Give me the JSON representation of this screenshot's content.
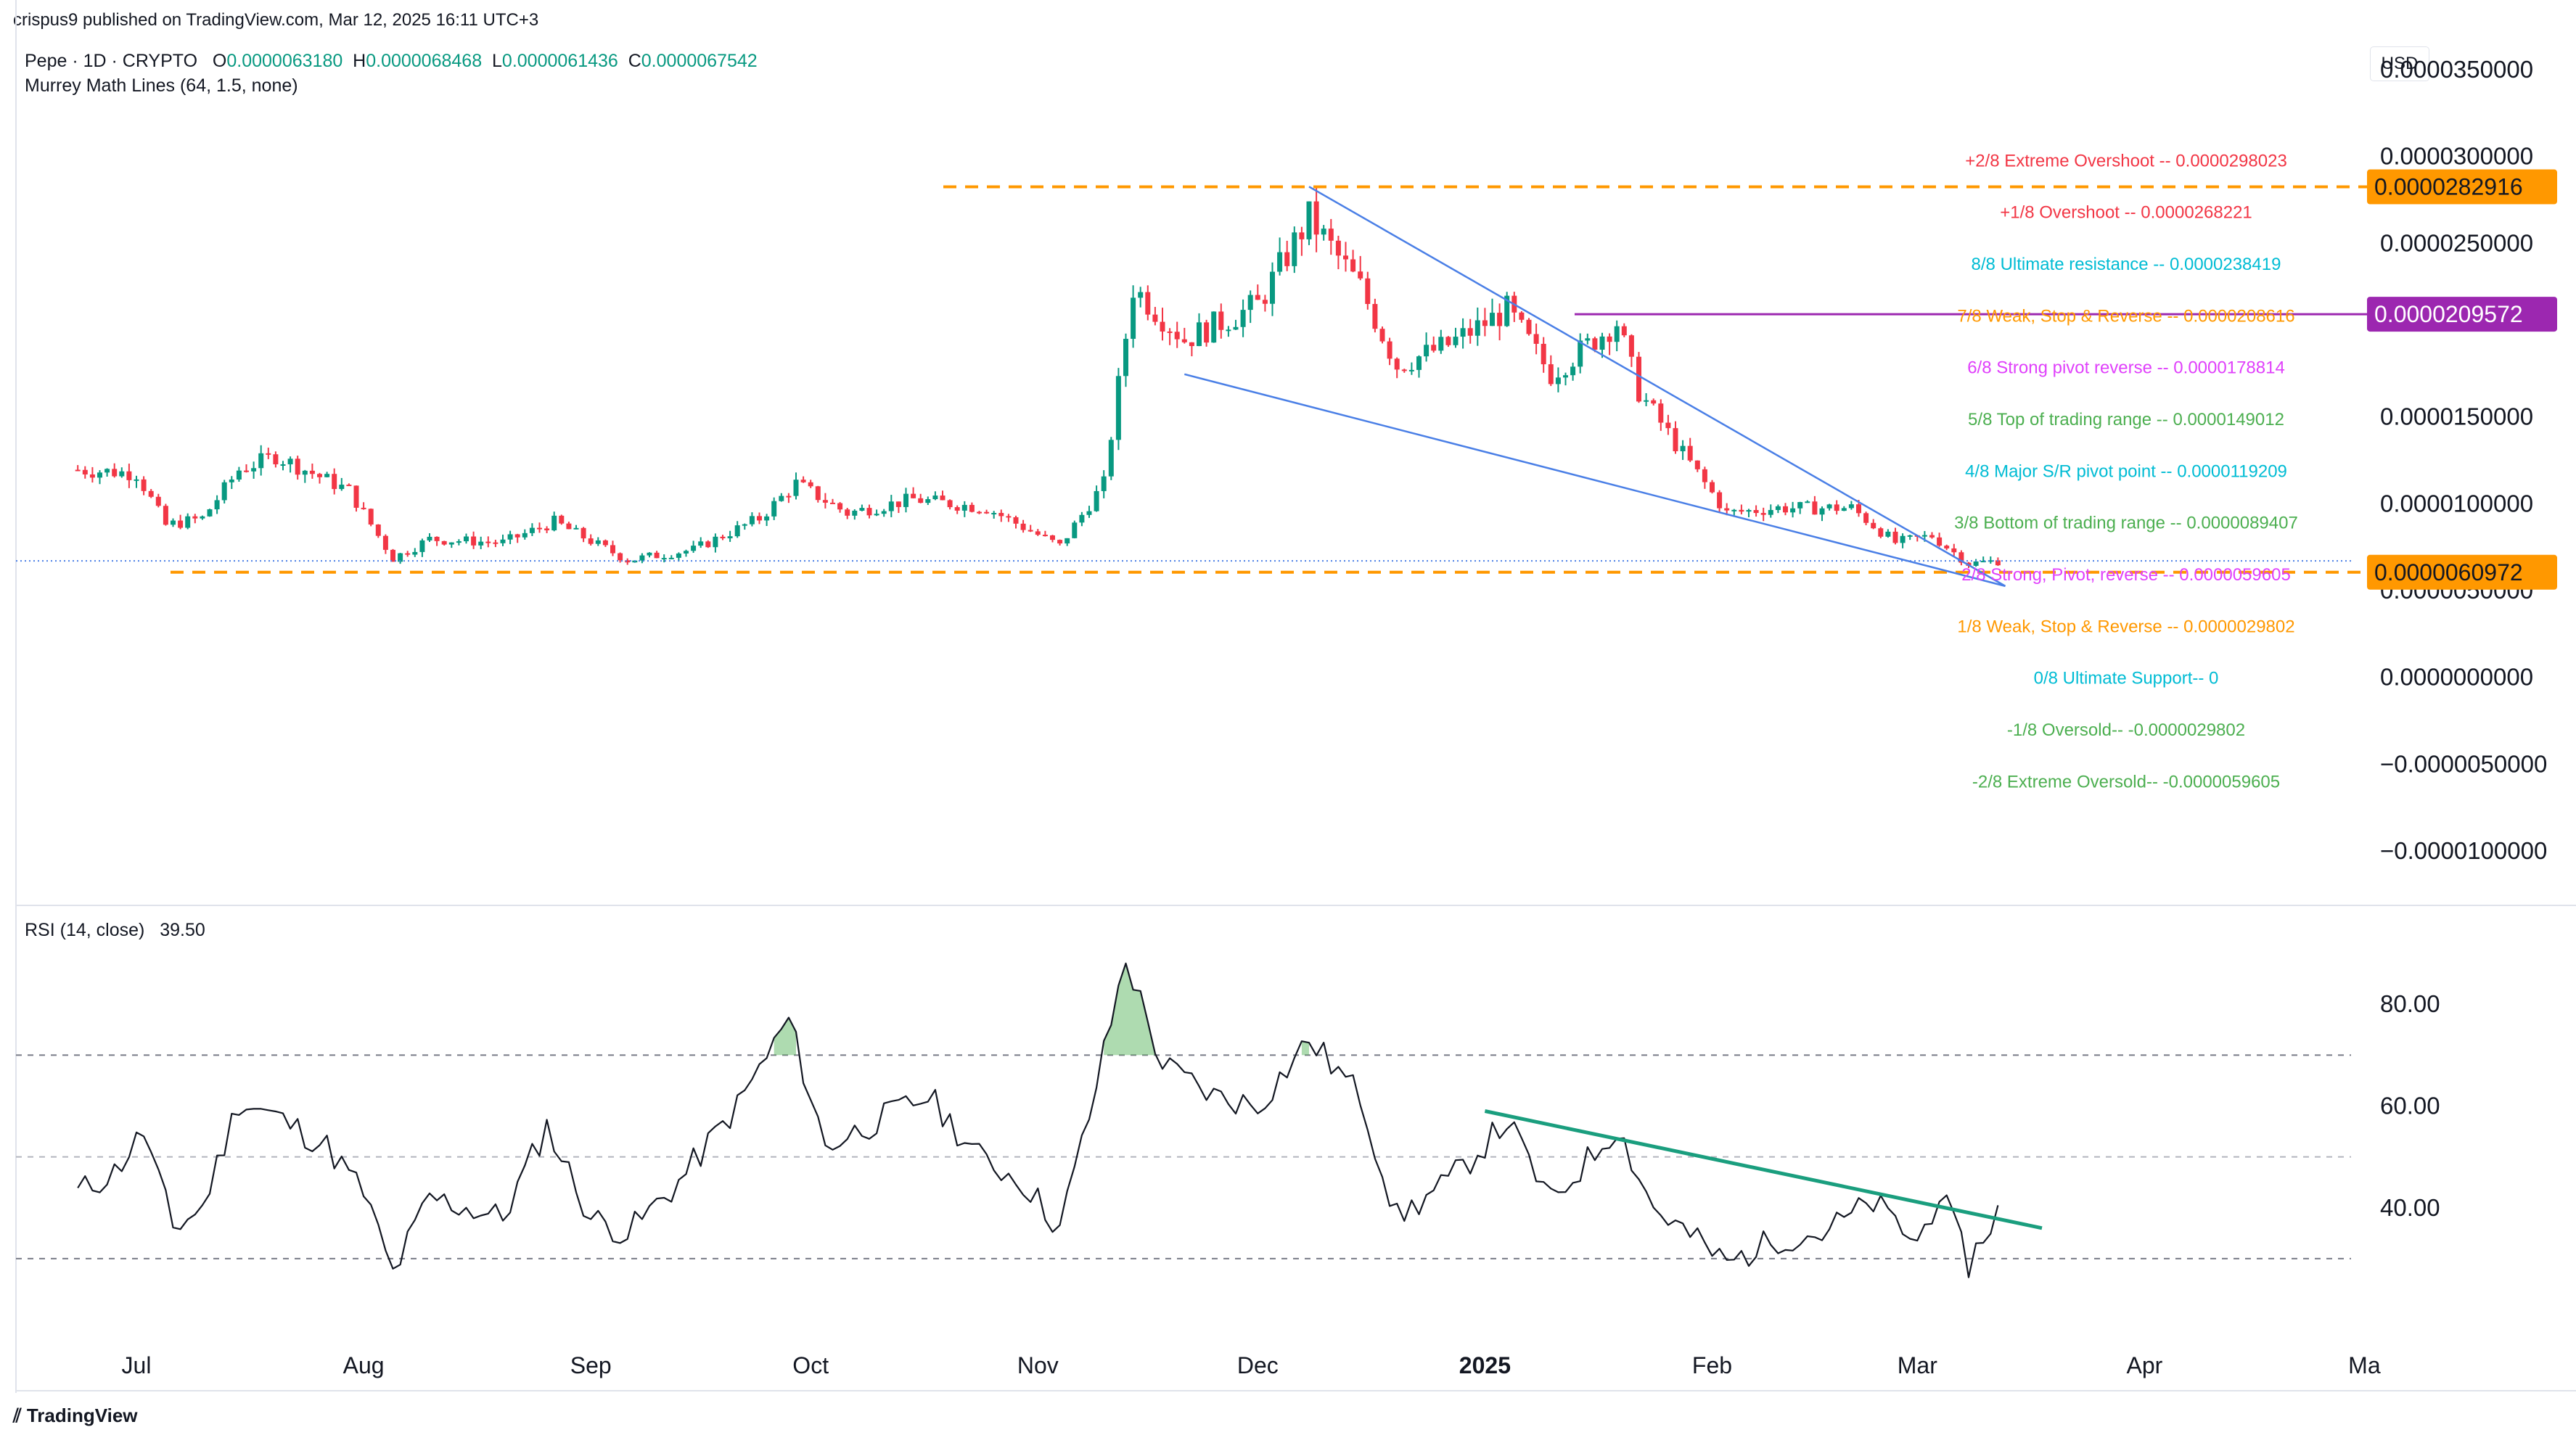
{
  "header": {
    "publisher": "crispus9 published on TradingView.com, Mar 12, 2025 16:11 UTC+3"
  },
  "legend": {
    "symbol": "Pepe · 1D · CRYPTO",
    "o_label": "O",
    "o": "0.0000063180",
    "h_label": "H",
    "h": "0.0000068468",
    "l_label": "L",
    "l": "0.0000061436",
    "c_label": "C",
    "c": "0.0000067542",
    "indicator": "Murrey Math Lines (64, 1.5, none)"
  },
  "rsi_legend": {
    "label": "RSI (14, close)",
    "value": "39.50"
  },
  "currency_button": "USD",
  "footer": {
    "brand": "TradingView"
  },
  "colors": {
    "up": "#089981",
    "down": "#f23645",
    "trend": "#4a7fe6",
    "orange": "#ff9800",
    "purple": "#9c27b0",
    "rsi_trend": "#1a9e7e"
  },
  "chart_data": [
    {
      "type": "candlestick",
      "title": "Pepe · 1D · CRYPTO",
      "x_labels": [
        "Jul",
        "Aug",
        "Sep",
        "Oct",
        "Nov",
        "Dec",
        "2025",
        "Feb",
        "Mar",
        "Apr",
        "Ma"
      ],
      "y_ticks": [
        "0.0000350000",
        "0.0000300000",
        "0.0000250000",
        "0.0000150000",
        "0.0000100000",
        "0.0000050000",
        "0.0000000000",
        "−0.0000050000",
        "−0.0000100000"
      ],
      "ylim": [
        -1.15e-05,
        3.55e-05
      ],
      "price_labels": [
        "0.0000282916",
        "0.0000209572",
        "0.0000060972"
      ],
      "murrey_lines": [
        {
          "label": "+2/8 Extreme Overshoot --  0.0000298023",
          "value": 2.98023e-05,
          "color": "#f23645"
        },
        {
          "label": "+1/8 Overshoot --  0.0000268221",
          "value": 2.68221e-05,
          "color": "#f23645"
        },
        {
          "label": "8/8 Ultimate resistance --  0.0000238419",
          "value": 2.38419e-05,
          "color": "#00bcd4"
        },
        {
          "label": "7/8 Weak, Stop & Reverse --  0.0000208616",
          "value": 2.08616e-05,
          "color": "#ff9800"
        },
        {
          "label": "6/8 Strong pivot reverse --  0.0000178814",
          "value": 1.78814e-05,
          "color": "#e040fb"
        },
        {
          "label": "5/8 Top of trading range --  0.0000149012",
          "value": 1.49012e-05,
          "color": "#4caf50"
        },
        {
          "label": "4/8 Major S/R pivot point --  0.0000119209",
          "value": 1.19209e-05,
          "color": "#00bcd4"
        },
        {
          "label": "3/8 Bottom of trading range --  0.0000089407",
          "value": 8.9407e-06,
          "color": "#4caf50"
        },
        {
          "label": "2/8 Strong, Pivot, reverse --  0.0000059605",
          "value": 5.9605e-06,
          "color": "#e040fb"
        },
        {
          "label": "1/8 Weak, Stop & Reverse --  0.0000029802",
          "value": 2.9802e-06,
          "color": "#ff9800"
        },
        {
          "label": "0/8 Ultimate Support--  0",
          "value": 0,
          "color": "#00bcd4"
        },
        {
          "label": "-1/8 Oversold--  -0.0000029802",
          "value": -2.9802e-06,
          "color": "#4caf50"
        },
        {
          "label": "-2/8 Extreme Oversold--  -0.0000059605",
          "value": -5.9605e-06,
          "color": "#4caf50"
        }
      ],
      "horizontal_lines": [
        {
          "value": 2.82916e-05,
          "style": "dashed",
          "color": "#ff9800"
        },
        {
          "value": 2.09572e-05,
          "style": "solid",
          "color": "#9c27b0"
        },
        {
          "value": 6.0972e-06,
          "style": "dashed",
          "color": "#ff9800"
        }
      ],
      "trendlines": [
        {
          "from": [
            "Dec 8 2024",
            2.83e-05
          ],
          "to": [
            "Mar 13 2025",
            5.3e-06
          ]
        },
        {
          "from": [
            "Nov 21 2024",
            1.75e-05
          ],
          "to": [
            "Mar 13 2025",
            5.3e-06
          ]
        }
      ],
      "close_series": [
        {
          "date": "2024-06-23",
          "close": 1.2e-05
        },
        {
          "date": "2024-07-01",
          "close": 1.18e-05
        },
        {
          "date": "2024-07-05",
          "close": 8.8e-06
        },
        {
          "date": "2024-07-10",
          "close": 9.2e-06
        },
        {
          "date": "2024-07-15",
          "close": 1.2e-05
        },
        {
          "date": "2024-07-20",
          "close": 1.28e-05
        },
        {
          "date": "2024-07-25",
          "close": 1.18e-05
        },
        {
          "date": "2024-07-30",
          "close": 1.08e-05
        },
        {
          "date": "2024-08-05",
          "close": 6.9e-06
        },
        {
          "date": "2024-08-10",
          "close": 8e-06
        },
        {
          "date": "2024-08-20",
          "close": 7.8e-06
        },
        {
          "date": "2024-08-27",
          "close": 9e-06
        },
        {
          "date": "2024-09-06",
          "close": 6.8e-06
        },
        {
          "date": "2024-09-15",
          "close": 7.4e-06
        },
        {
          "date": "2024-09-24",
          "close": 9.2e-06
        },
        {
          "date": "2024-09-29",
          "close": 1.12e-05
        },
        {
          "date": "2024-10-06",
          "close": 9.5e-06
        },
        {
          "date": "2024-10-15",
          "close": 1.03e-05
        },
        {
          "date": "2024-10-25",
          "close": 9.8e-06
        },
        {
          "date": "2024-11-04",
          "close": 7.6e-06
        },
        {
          "date": "2024-11-10",
          "close": 1.12e-05
        },
        {
          "date": "2024-11-14",
          "close": 2.25e-05
        },
        {
          "date": "2024-11-21",
          "close": 1.95e-05
        },
        {
          "date": "2024-12-01",
          "close": 2.15e-05
        },
        {
          "date": "2024-12-08",
          "close": 2.65e-05
        },
        {
          "date": "2024-12-15",
          "close": 2.25e-05
        },
        {
          "date": "2024-12-20",
          "close": 1.8e-05
        },
        {
          "date": "2024-12-27",
          "close": 1.92e-05
        },
        {
          "date": "2025-01-04",
          "close": 2.12e-05
        },
        {
          "date": "2025-01-10",
          "close": 1.75e-05
        },
        {
          "date": "2025-01-19",
          "close": 2.05e-05
        },
        {
          "date": "2025-01-22",
          "close": 1.65e-05
        },
        {
          "date": "2025-01-27",
          "close": 1.35e-05
        },
        {
          "date": "2025-02-03",
          "close": 9.5e-06
        },
        {
          "date": "2025-02-10",
          "close": 9.8e-06
        },
        {
          "date": "2025-02-20",
          "close": 9.8e-06
        },
        {
          "date": "2025-02-26",
          "close": 7.8e-06
        },
        {
          "date": "2025-03-03",
          "close": 8.2e-06
        },
        {
          "date": "2025-03-08",
          "close": 6.6e-06
        },
        {
          "date": "2025-03-12",
          "close": 6.7542e-06
        }
      ]
    },
    {
      "type": "line",
      "title": "RSI (14, close)",
      "x_labels": [
        "Jul",
        "Aug",
        "Sep",
        "Oct",
        "Nov",
        "Dec",
        "2025",
        "Feb",
        "Mar",
        "Apr",
        "Ma"
      ],
      "y_ticks": [
        "80.00",
        "60.00",
        "40.00"
      ],
      "ylim": [
        25,
        92
      ],
      "bands": [
        70,
        50,
        30
      ],
      "overbought_fill_above": 70,
      "trendline": {
        "from": [
          "Jan 1 2025",
          59
        ],
        "to": [
          "Mar 18 2025",
          36
        ]
      },
      "series": [
        {
          "date": "2024-06-23",
          "value": 43
        },
        {
          "date": "2024-06-28",
          "value": 47
        },
        {
          "date": "2024-07-02",
          "value": 55
        },
        {
          "date": "2024-07-06",
          "value": 36
        },
        {
          "date": "2024-07-10",
          "value": 40
        },
        {
          "date": "2024-07-15",
          "value": 61
        },
        {
          "date": "2024-07-20",
          "value": 58
        },
        {
          "date": "2024-07-27",
          "value": 52
        },
        {
          "date": "2024-08-01",
          "value": 43
        },
        {
          "date": "2024-08-05",
          "value": 27
        },
        {
          "date": "2024-08-10",
          "value": 42
        },
        {
          "date": "2024-08-20",
          "value": 38
        },
        {
          "date": "2024-08-26",
          "value": 56
        },
        {
          "date": "2024-09-01",
          "value": 38
        },
        {
          "date": "2024-09-06",
          "value": 35
        },
        {
          "date": "2024-09-13",
          "value": 45
        },
        {
          "date": "2024-09-21",
          "value": 60
        },
        {
          "date": "2024-09-28",
          "value": 77
        },
        {
          "date": "2024-10-03",
          "value": 52
        },
        {
          "date": "2024-10-10",
          "value": 57
        },
        {
          "date": "2024-10-17",
          "value": 62
        },
        {
          "date": "2024-10-24",
          "value": 50
        },
        {
          "date": "2024-10-30",
          "value": 45
        },
        {
          "date": "2024-11-04",
          "value": 36
        },
        {
          "date": "2024-11-08",
          "value": 58
        },
        {
          "date": "2024-11-13",
          "value": 89
        },
        {
          "date": "2024-11-18",
          "value": 68
        },
        {
          "date": "2024-11-25",
          "value": 62
        },
        {
          "date": "2024-12-01",
          "value": 60
        },
        {
          "date": "2024-12-08",
          "value": 73
        },
        {
          "date": "2024-12-15",
          "value": 62
        },
        {
          "date": "2024-12-20",
          "value": 38
        },
        {
          "date": "2024-12-27",
          "value": 45
        },
        {
          "date": "2025-01-04",
          "value": 57
        },
        {
          "date": "2025-01-10",
          "value": 41
        },
        {
          "date": "2025-01-19",
          "value": 56
        },
        {
          "date": "2025-01-24",
          "value": 40
        },
        {
          "date": "2025-02-03",
          "value": 29
        },
        {
          "date": "2025-02-10",
          "value": 34
        },
        {
          "date": "2025-02-16",
          "value": 35
        },
        {
          "date": "2025-02-23",
          "value": 41
        },
        {
          "date": "2025-03-01",
          "value": 33
        },
        {
          "date": "2025-03-04",
          "value": 43
        },
        {
          "date": "2025-03-08",
          "value": 29
        },
        {
          "date": "2025-03-12",
          "value": 39.5
        }
      ]
    }
  ]
}
